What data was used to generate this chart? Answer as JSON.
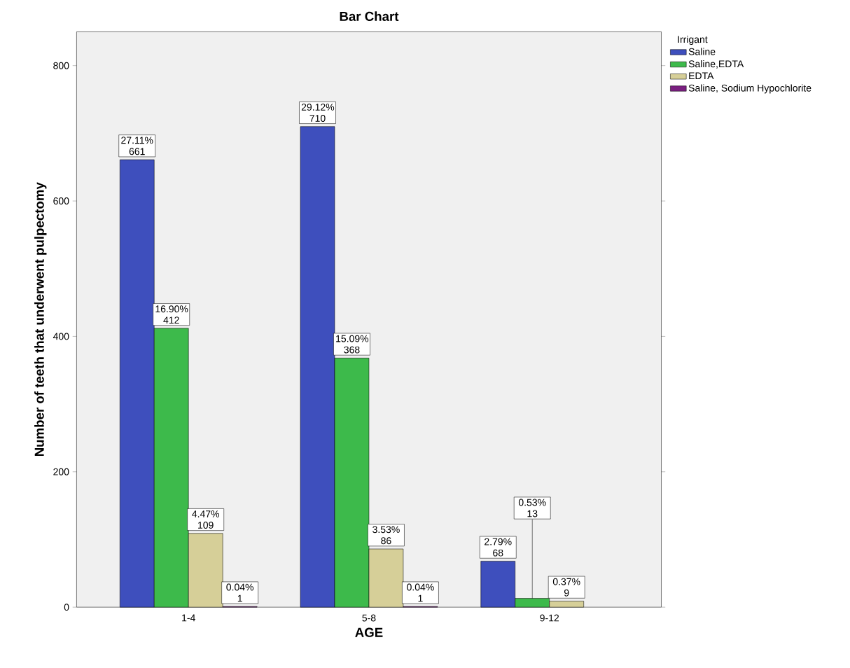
{
  "chart_data": {
    "type": "bar",
    "title": "Bar Chart",
    "xlabel": "AGE",
    "ylabel": "Number of teeth that underwent pulpectomy",
    "legend_title": "Irrigant",
    "categories": [
      "1-4",
      "5-8",
      "9-12"
    ],
    "series": [
      {
        "name": "Saline",
        "color": "#3e4fbd",
        "values": [
          661,
          710,
          68
        ],
        "value_labels": [
          "27.11% 661",
          "29.12% 710",
          "2.79% 68"
        ]
      },
      {
        "name": "Saline,EDTA",
        "color": "#3dba4b",
        "values": [
          412,
          368,
          13
        ],
        "value_labels": [
          "16.90% 412",
          "15.09% 368",
          "0.53% 13"
        ]
      },
      {
        "name": "EDTA",
        "color": "#d6cf98",
        "values": [
          109,
          86,
          9
        ],
        "value_labels": [
          "4.47% 109",
          "3.53% 86",
          "0.37% 9"
        ]
      },
      {
        "name": "Saline, Sodium Hypochlorite",
        "color": "#7a2080",
        "values": [
          1,
          1,
          null
        ],
        "value_labels": [
          "0.04% 1",
          "0.04% 1",
          null
        ]
      }
    ],
    "ylim": [
      0,
      850
    ],
    "yticks": [
      0,
      200,
      400,
      600,
      800
    ],
    "grid": false,
    "legend": "top right"
  }
}
